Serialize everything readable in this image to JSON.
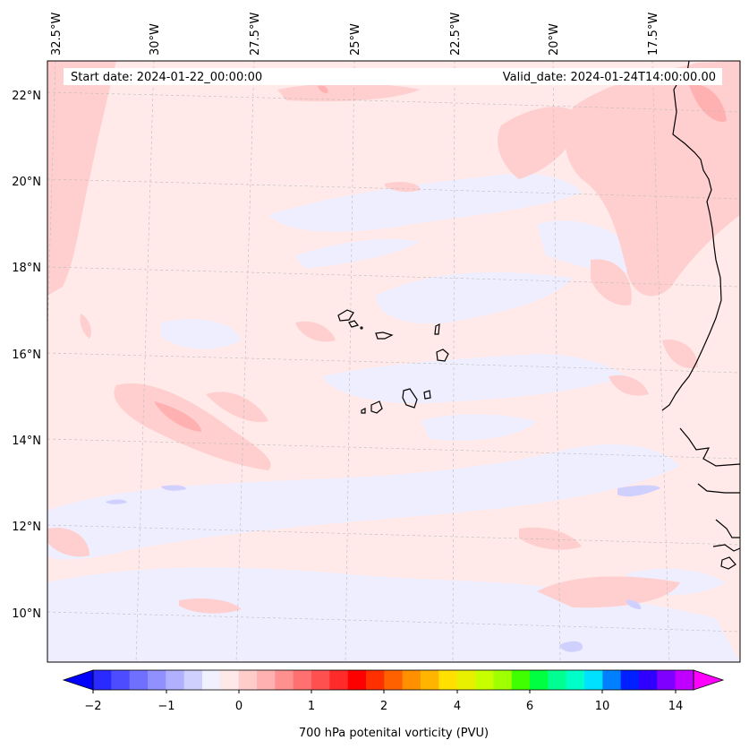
{
  "header": {
    "start_date": "Start date: 2024-01-22_00:00:00",
    "valid_date": "Valid_date: 2024-01-24T14:00:00.00"
  },
  "map": {
    "lon_labels": [
      "32.5°W",
      "30°W",
      "27.5°W",
      "25°W",
      "22.5°W",
      "20°W",
      "17.5°W"
    ],
    "lat_labels": [
      "22°N",
      "20°N",
      "18°N",
      "16°N",
      "14°N",
      "12°N",
      "10°N"
    ]
  },
  "colorbar": {
    "label": "700 hPa potenital vorticity (PVU)",
    "tick_labels": [
      "−2",
      "−1",
      "0",
      "1",
      "2",
      "4",
      "6",
      "10",
      "14"
    ],
    "colors": [
      "#0000ff",
      "#2a2aff",
      "#4d4dff",
      "#7070ff",
      "#9090ff",
      "#b0b0ff",
      "#d0d0ff",
      "#f0f0ff",
      "#ffe8e8",
      "#ffcccc",
      "#ffb0b0",
      "#ff9090",
      "#ff7070",
      "#ff5050",
      "#ff2a2a",
      "#ff0000",
      "#ff3000",
      "#ff6000",
      "#ff9000",
      "#ffb400",
      "#ffe000",
      "#e8f000",
      "#c8ff00",
      "#a0ff00",
      "#40ff00",
      "#00ff40",
      "#00ff90",
      "#00ffc8",
      "#00e0ff",
      "#0080ff",
      "#0020ff",
      "#3000ff",
      "#8000ff",
      "#c000ff",
      "#ff00ff"
    ]
  }
}
